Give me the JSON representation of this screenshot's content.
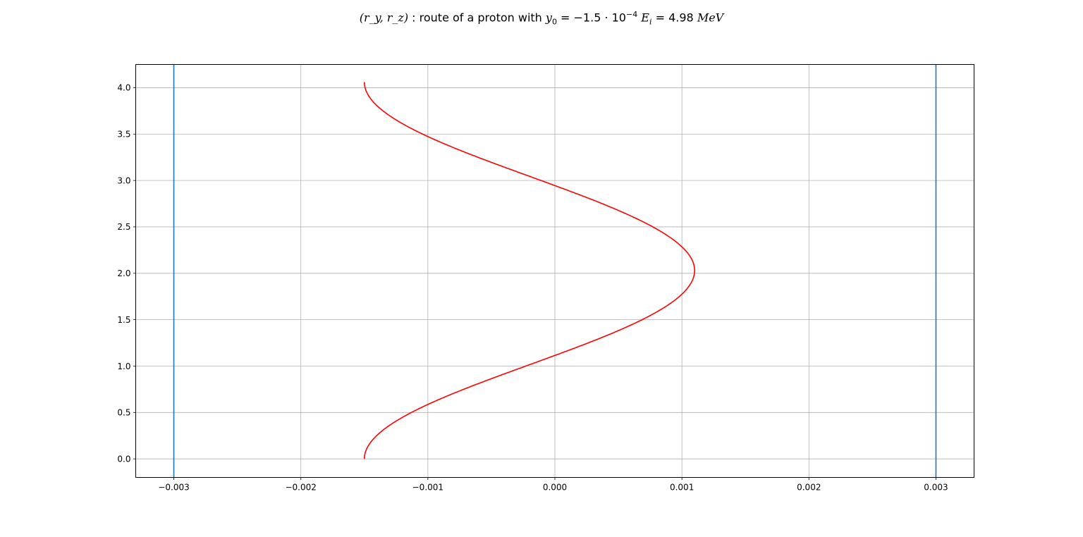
{
  "title": {
    "lhs": "(r_y, r_z)",
    "sep": " : ",
    "text": "route of a proton with ",
    "y0_symbol": "y",
    "y0_sub": "0",
    "y0_eq": " = −1.5 · 10",
    "y0_exp": "−4",
    "ei_symbol": "E",
    "ei_sub": "i",
    "ei_eq": " = 4.98 ",
    "ei_unit": "MeV"
  },
  "chart_data": {
    "type": "line",
    "xlim": [
      -0.0033,
      0.0033
    ],
    "ylim": [
      -0.2,
      4.25
    ],
    "grid": true,
    "xlabel": "",
    "ylabel": "",
    "x_ticks": [
      -0.003,
      -0.002,
      -0.001,
      0.0,
      0.001,
      0.002,
      0.003
    ],
    "x_tick_labels": [
      "−0.003",
      "−0.002",
      "−0.001",
      "0.000",
      "0.001",
      "0.002",
      "0.003"
    ],
    "y_ticks": [
      0.0,
      0.5,
      1.0,
      1.5,
      2.0,
      2.5,
      3.0,
      3.5,
      4.0
    ],
    "y_tick_labels": [
      "0.0",
      "0.5",
      "1.0",
      "1.5",
      "2.0",
      "2.5",
      "3.0",
      "3.5",
      "4.0"
    ],
    "boundaries": {
      "values": [
        -0.003,
        0.003
      ],
      "color": "#1f77b4"
    },
    "series": [
      {
        "name": "proton route",
        "color": "#ff0000",
        "y_center": -0.0002,
        "amplitude": 0.0013,
        "z_period": 4.06,
        "z_max": 4.06,
        "samples": 300
      }
    ]
  }
}
